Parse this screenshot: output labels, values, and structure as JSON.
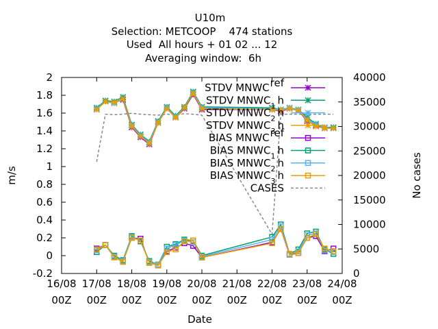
{
  "chart_data": {
    "type": "line",
    "title_lines": [
      "U10m",
      "Selection: METCOOP    474 stations",
      "Used  All hours + 01 02 ... 12",
      "Averaging window:  6h"
    ],
    "xlabel": "Date",
    "ylabel": "m/s",
    "y2label": "No cases",
    "xlim": [
      0,
      8
    ],
    "ylim": [
      -0.2,
      2
    ],
    "y2lim": [
      0,
      40000
    ],
    "x_tick_labels": [
      [
        "16/08",
        "00Z"
      ],
      [
        "17/08",
        "00Z"
      ],
      [
        "18/08",
        "00Z"
      ],
      [
        "19/08",
        "00Z"
      ],
      [
        "20/08",
        "00Z"
      ],
      [
        "21/08",
        "00Z"
      ],
      [
        "22/08",
        "00Z"
      ],
      [
        "23/08",
        "00Z"
      ],
      [
        "24/08",
        "00Z"
      ]
    ],
    "y_ticks": [
      "-0.2",
      "0",
      "0.2",
      "0.4",
      "0.6",
      "0.8",
      "1",
      "1.2",
      "1.4",
      "1.6",
      "1.8",
      "2"
    ],
    "y2_ticks": [
      "0",
      "5000",
      "10000",
      "15000",
      "20000",
      "25000",
      "30000",
      "35000",
      "40000"
    ],
    "legend_position": "top-right",
    "x": [
      1.0,
      1.25,
      1.5,
      1.75,
      2.0,
      2.25,
      2.5,
      2.75,
      3.0,
      3.25,
      3.5,
      3.75,
      4.0,
      6.0,
      6.25,
      6.5,
      6.75,
      7.0,
      7.25,
      7.5,
      7.75
    ],
    "series": [
      {
        "name": "STDV MNWC_ref",
        "legend_main": "STDV MNWC",
        "legend_sub": "ref",
        "color": "#9400d3",
        "marker": "star",
        "axis": "y",
        "values": [
          1.64,
          1.73,
          1.72,
          1.75,
          1.44,
          1.33,
          1.25,
          1.49,
          1.65,
          1.55,
          1.65,
          1.81,
          1.64,
          1.64,
          1.62,
          1.65,
          1.63,
          1.51,
          1.46,
          1.43,
          1.43
        ]
      },
      {
        "name": "STDV MNWC_1h",
        "legend_main": "STDV MNWC",
        "legend_sub": "1",
        "legend_suffix": "h",
        "color": "#009e73",
        "marker": "star",
        "axis": "y",
        "values": [
          1.66,
          1.74,
          1.73,
          1.78,
          1.47,
          1.36,
          1.28,
          1.51,
          1.67,
          1.57,
          1.67,
          1.84,
          1.67,
          1.66,
          1.64,
          1.66,
          1.64,
          1.55,
          1.48,
          1.44,
          1.44
        ]
      },
      {
        "name": "STDV MNWC_2h",
        "legend_main": "STDV MNWC",
        "legend_sub": "2",
        "legend_suffix": "h",
        "color": "#56b4e9",
        "marker": "star",
        "axis": "y",
        "values": [
          1.65,
          1.73,
          1.71,
          1.76,
          1.46,
          1.35,
          1.27,
          1.5,
          1.66,
          1.56,
          1.66,
          1.83,
          1.66,
          1.65,
          1.64,
          1.66,
          1.64,
          1.53,
          1.47,
          1.44,
          1.43
        ]
      },
      {
        "name": "STDV MNWC_3h",
        "legend_main": "STDV MNWC",
        "legend_sub": "3",
        "legend_suffix": "h",
        "color": "#e69f00",
        "marker": "star",
        "axis": "y",
        "values": [
          1.64,
          1.73,
          1.72,
          1.76,
          1.45,
          1.34,
          1.26,
          1.49,
          1.65,
          1.55,
          1.66,
          1.82,
          1.65,
          1.64,
          1.63,
          1.65,
          1.63,
          1.52,
          1.45,
          1.43,
          1.43
        ]
      },
      {
        "name": "BIAS MNWC_ref",
        "legend_main": "BIAS MNWC",
        "legend_sub": "ref",
        "color": "#9400d3",
        "marker": "square",
        "axis": "y",
        "values": [
          0.08,
          0.12,
          -0.01,
          -0.06,
          0.2,
          0.19,
          -0.08,
          -0.11,
          0.05,
          0.09,
          0.14,
          0.11,
          -0.02,
          0.15,
          0.3,
          0.01,
          0.03,
          0.2,
          0.22,
          0.05,
          0.08
        ]
      },
      {
        "name": "BIAS MNWC_1h",
        "legend_main": "BIAS MNWC",
        "legend_sub": "1",
        "legend_suffix": "h",
        "color": "#009e73",
        "marker": "square",
        "axis": "y",
        "values": [
          0.04,
          0.12,
          0.0,
          -0.05,
          0.22,
          0.16,
          -0.06,
          -0.1,
          0.1,
          0.13,
          0.18,
          0.17,
          0.0,
          0.21,
          0.35,
          0.02,
          0.07,
          0.25,
          0.27,
          0.07,
          0.02
        ]
      },
      {
        "name": "BIAS MNWC_2h",
        "legend_main": "BIAS MNWC",
        "legend_sub": "2",
        "legend_suffix": "h",
        "color": "#56b4e9",
        "marker": "square",
        "axis": "y",
        "values": [
          0.06,
          0.12,
          -0.01,
          -0.06,
          0.21,
          0.17,
          -0.07,
          -0.1,
          0.08,
          0.12,
          0.17,
          0.15,
          -0.01,
          0.18,
          0.33,
          0.01,
          0.05,
          0.23,
          0.25,
          0.06,
          0.04
        ]
      },
      {
        "name": "BIAS MNWC_3h",
        "legend_main": "BIAS MNWC",
        "legend_sub": "3",
        "legend_suffix": "h",
        "color": "#e69f00",
        "marker": "square",
        "axis": "y",
        "values": [
          0.07,
          0.12,
          -0.02,
          -0.07,
          0.2,
          0.17,
          -0.08,
          -0.11,
          0.04,
          0.07,
          0.16,
          0.17,
          -0.02,
          0.14,
          0.3,
          0.02,
          0.03,
          0.2,
          0.24,
          0.08,
          0.05
        ]
      },
      {
        "name": "CASES",
        "legend_main": "CASES",
        "color": "#888888",
        "marker": "none",
        "dashed": true,
        "axis": "y2",
        "values": [
          22800,
          32500,
          32400,
          32500,
          32700,
          32500,
          32400,
          32300,
          32500,
          32400,
          32600,
          32500,
          32300,
          8000,
          32500,
          32500,
          32500,
          32500,
          32500,
          32500,
          32500
        ]
      }
    ]
  }
}
